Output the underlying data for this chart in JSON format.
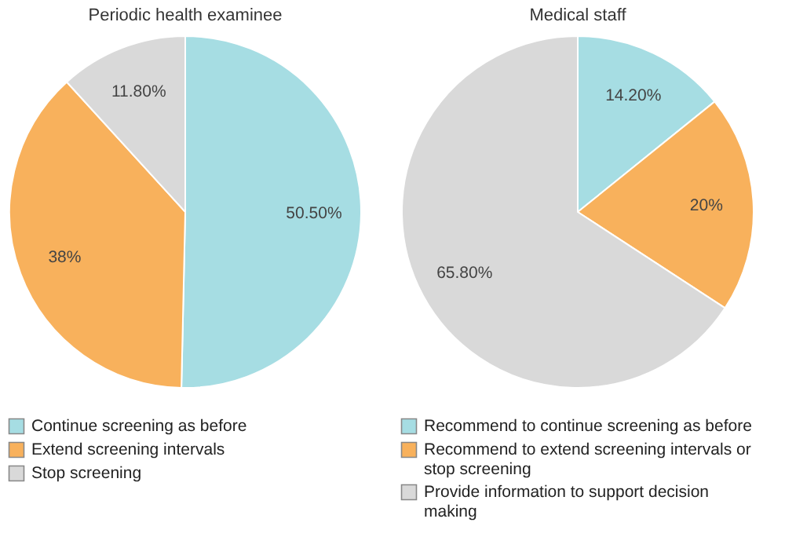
{
  "chart_data": [
    {
      "type": "pie",
      "title": "Periodic health examinee",
      "categories": [
        "Continue screening as before",
        "Extend screening intervals",
        "Stop screening"
      ],
      "values": [
        50.5,
        38,
        11.8
      ],
      "value_labels": [
        "50.50%",
        "38%",
        "11.80%"
      ],
      "colors": [
        "#a6dde3",
        "#f8b15c",
        "#d9d9d9"
      ],
      "legend": "bottom"
    },
    {
      "type": "pie",
      "title": "Medical staff",
      "categories": [
        "Recommend to continue screening as before",
        "Recommend to extend screening intervals or stop screening",
        "Provide information to support decision making"
      ],
      "values": [
        14.2,
        20,
        65.8
      ],
      "value_labels": [
        "14.20%",
        "20%",
        "65.80%"
      ],
      "colors": [
        "#a6dde3",
        "#f8b15c",
        "#d9d9d9"
      ],
      "legend": "bottom"
    }
  ]
}
